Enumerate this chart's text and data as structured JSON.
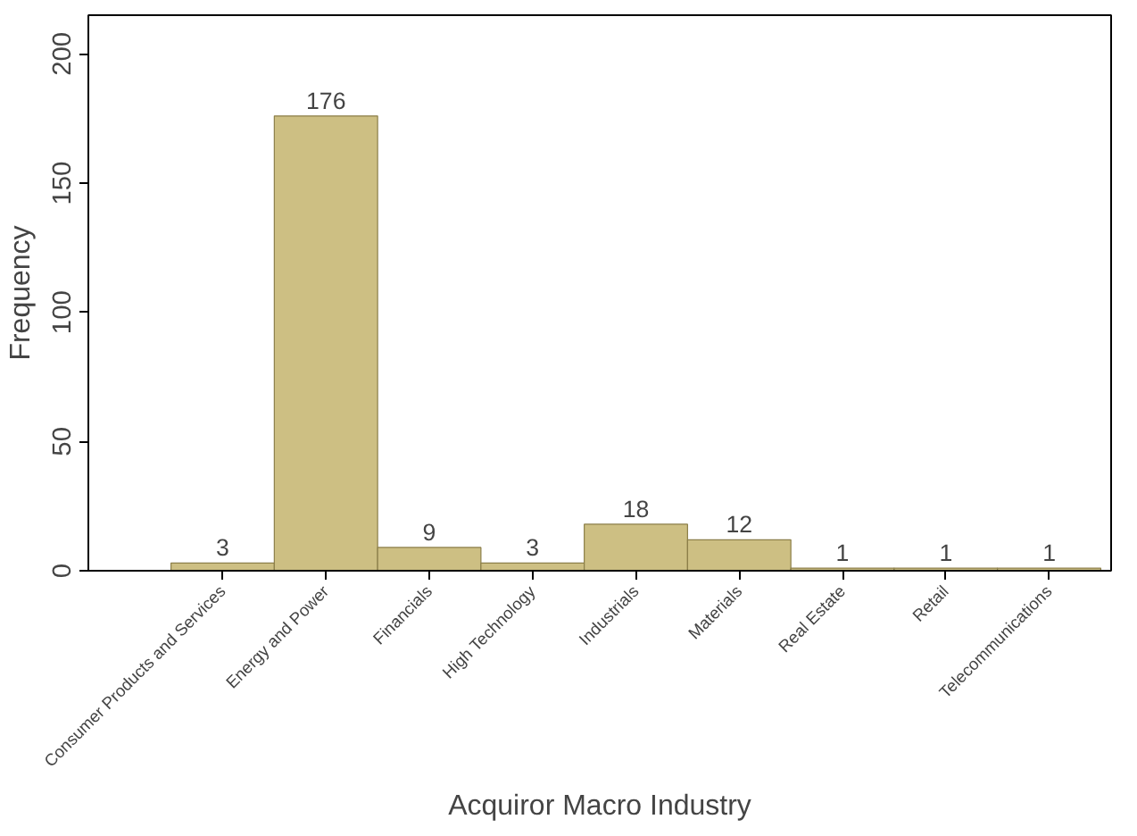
{
  "chart_data": {
    "type": "bar",
    "xlabel": "Acquiror Macro Industry",
    "ylabel": "Frequency",
    "categories": [
      "Consumer Products and Services",
      "Energy and Power",
      "Financials",
      "High Technology",
      "Industrials",
      "Materials",
      "Real Estate",
      "Retail",
      "Telecommunications"
    ],
    "values": [
      3,
      176,
      9,
      3,
      18,
      12,
      1,
      1,
      1
    ],
    "color": "#cdbf83",
    "ylim": [
      0,
      215
    ],
    "yticks": [
      0,
      50,
      100,
      150,
      200
    ],
    "data_labels": true,
    "grid": false
  }
}
